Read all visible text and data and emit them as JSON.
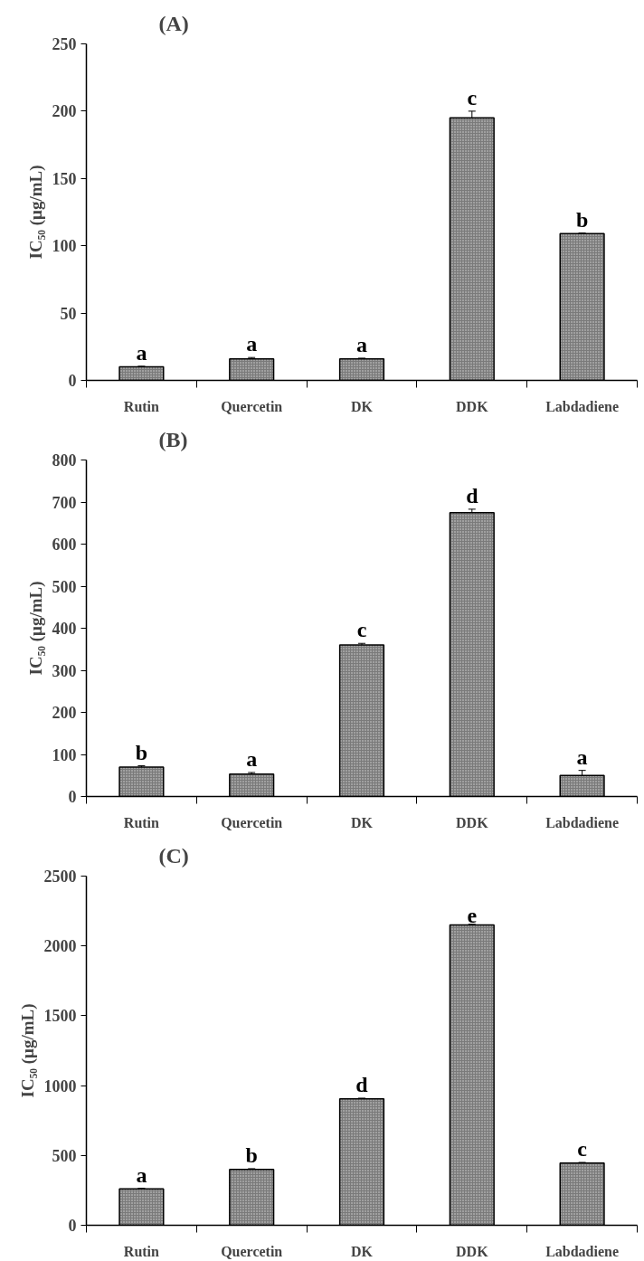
{
  "chart_data": [
    {
      "type": "bar",
      "title": "(A)",
      "ylabel": "IC₅₀ (μg/mL)",
      "categories": [
        "Rutin",
        "Quercetin",
        "DK",
        "DDK",
        "Labdadiene"
      ],
      "values": [
        10,
        16,
        16,
        195,
        109
      ],
      "errors": [
        0.5,
        1,
        0.5,
        5,
        0.5
      ],
      "color": "#7a7a7a",
      "ylim": [
        0,
        250
      ],
      "yticks": [
        0,
        50,
        100,
        150,
        200,
        250
      ],
      "grid": false,
      "annotations": [
        {
          "text": "a",
          "x": "Rutin",
          "y": 10.5
        },
        {
          "text": "a",
          "x": "Quercetin",
          "y": 17
        },
        {
          "text": "a",
          "x": "DK",
          "y": 16.5
        },
        {
          "text": "c",
          "x": "DDK",
          "y": 200
        },
        {
          "text": "b",
          "x": "Labdadiene",
          "y": 109.5
        }
      ]
    },
    {
      "type": "bar",
      "title": "(B)",
      "ylabel": "IC₅₀ (μg/mL)",
      "categories": [
        "Rutin",
        "Quercetin",
        "DK",
        "DDK",
        "Labdadiene"
      ],
      "values": [
        70,
        53,
        360,
        675,
        50
      ],
      "errors": [
        3,
        4,
        4,
        8,
        12
      ],
      "color": "#7a7a7a",
      "ylim": [
        0,
        800
      ],
      "yticks": [
        0,
        100,
        200,
        300,
        400,
        500,
        600,
        700,
        800
      ],
      "grid": false,
      "annotations": [
        {
          "text": "b",
          "x": "Rutin",
          "y": 73
        },
        {
          "text": "a",
          "x": "Quercetin",
          "y": 57
        },
        {
          "text": "c",
          "x": "DK",
          "y": 364
        },
        {
          "text": "d",
          "x": "DDK",
          "y": 683
        },
        {
          "text": "a",
          "x": "Labdadiene",
          "y": 62
        }
      ]
    },
    {
      "type": "bar",
      "title": "(C)",
      "ylabel": "IC₅₀ (μg/mL)",
      "categories": [
        "Rutin",
        "Quercetin",
        "DK",
        "DDK",
        "Labdadiene"
      ],
      "values": [
        260,
        400,
        905,
        2150,
        445
      ],
      "errors": [
        5,
        5,
        5,
        5,
        5
      ],
      "color": "#7a7a7a",
      "ylim": [
        0,
        2500
      ],
      "yticks": [
        0,
        500,
        1000,
        1500,
        2000,
        2500
      ],
      "grid": false,
      "annotations": [
        {
          "text": "a",
          "x": "Rutin",
          "y": 265
        },
        {
          "text": "b",
          "x": "Quercetin",
          "y": 405
        },
        {
          "text": "d",
          "x": "DK",
          "y": 910
        },
        {
          "text": "e",
          "x": "DDK",
          "y": 2155
        },
        {
          "text": "c",
          "x": "Labdadiene",
          "y": 450
        }
      ]
    }
  ]
}
